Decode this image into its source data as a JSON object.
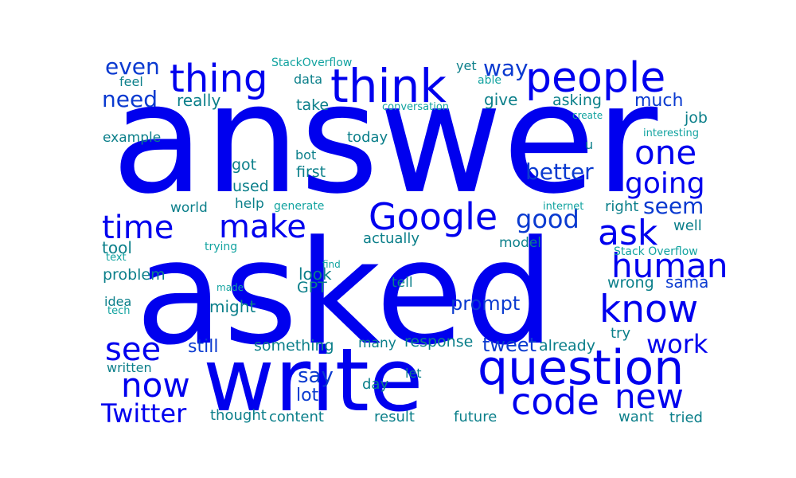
{
  "colors": {
    "background": "#ffffff",
    "blue": "#0000ee",
    "blue_mid": "#0a3ad0",
    "teal": "#0b7f8a",
    "teal_light": "#12a3a0"
  },
  "words": [
    {
      "text": "answer",
      "weight": 1.0,
      "color": "blue"
    },
    {
      "text": "asked",
      "weight": 0.98,
      "color": "blue"
    },
    {
      "text": "write",
      "weight": 0.76,
      "color": "blue"
    },
    {
      "text": "question",
      "weight": 0.45,
      "color": "blue"
    },
    {
      "text": "think",
      "weight": 0.44,
      "color": "blue"
    },
    {
      "text": "people",
      "weight": 0.4,
      "color": "blue"
    },
    {
      "text": "thing",
      "weight": 0.38,
      "color": "blue"
    },
    {
      "text": "know",
      "weight": 0.37,
      "color": "blue"
    },
    {
      "text": "Google",
      "weight": 0.36,
      "color": "blue"
    },
    {
      "text": "code",
      "weight": 0.36,
      "color": "blue"
    },
    {
      "text": "new",
      "weight": 0.34,
      "color": "blue"
    },
    {
      "text": "human",
      "weight": 0.32,
      "color": "blue"
    },
    {
      "text": "ask",
      "weight": 0.32,
      "color": "blue"
    },
    {
      "text": "now",
      "weight": 0.32,
      "color": "blue"
    },
    {
      "text": "one",
      "weight": 0.3,
      "color": "blue"
    },
    {
      "text": "make",
      "weight": 0.3,
      "color": "blue"
    },
    {
      "text": "see",
      "weight": 0.3,
      "color": "blue"
    },
    {
      "text": "time",
      "weight": 0.29,
      "color": "blue"
    },
    {
      "text": "going",
      "weight": 0.27,
      "color": "blue"
    },
    {
      "text": "Twitter",
      "weight": 0.26,
      "color": "blue"
    },
    {
      "text": "work",
      "weight": 0.25,
      "color": "blue"
    },
    {
      "text": "good",
      "weight": 0.23,
      "color": "blue_mid"
    },
    {
      "text": "better",
      "weight": 0.2,
      "color": "blue_mid"
    },
    {
      "text": "need",
      "weight": 0.2,
      "color": "blue_mid"
    },
    {
      "text": "even",
      "weight": 0.2,
      "color": "blue_mid"
    },
    {
      "text": "seem",
      "weight": 0.19,
      "color": "blue_mid"
    },
    {
      "text": "way",
      "weight": 0.19,
      "color": "blue_mid"
    },
    {
      "text": "say",
      "weight": 0.18,
      "color": "blue_mid"
    },
    {
      "text": "prompt",
      "weight": 0.17,
      "color": "blue_mid"
    },
    {
      "text": "tweet",
      "weight": 0.16,
      "color": "blue_mid"
    },
    {
      "text": "much",
      "weight": 0.15,
      "color": "blue_mid"
    },
    {
      "text": "still",
      "weight": 0.15,
      "color": "blue_mid"
    },
    {
      "text": "lot",
      "weight": 0.15,
      "color": "blue_mid"
    },
    {
      "text": "sama",
      "weight": 0.14,
      "color": "blue_mid"
    },
    {
      "text": "might",
      "weight": 0.14,
      "color": "teal"
    },
    {
      "text": "look",
      "weight": 0.14,
      "color": "teal"
    },
    {
      "text": "tool",
      "weight": 0.14,
      "color": "teal"
    },
    {
      "text": "really",
      "weight": 0.14,
      "color": "teal"
    },
    {
      "text": "give",
      "weight": 0.13,
      "color": "teal"
    },
    {
      "text": "something",
      "weight": 0.13,
      "color": "teal"
    },
    {
      "text": "response",
      "weight": 0.13,
      "color": "teal"
    },
    {
      "text": "already",
      "weight": 0.13,
      "color": "teal"
    },
    {
      "text": "take",
      "weight": 0.12,
      "color": "teal"
    },
    {
      "text": "first",
      "weight": 0.12,
      "color": "teal"
    },
    {
      "text": "problem",
      "weight": 0.12,
      "color": "teal"
    },
    {
      "text": "wrong",
      "weight": 0.12,
      "color": "teal"
    },
    {
      "text": "GPT",
      "weight": 0.12,
      "color": "teal"
    },
    {
      "text": "job",
      "weight": 0.12,
      "color": "teal"
    },
    {
      "text": "asking",
      "weight": 0.12,
      "color": "teal"
    },
    {
      "text": "got",
      "weight": 0.12,
      "color": "teal"
    },
    {
      "text": "used",
      "weight": 0.12,
      "color": "teal"
    },
    {
      "text": "today",
      "weight": 0.11,
      "color": "teal"
    },
    {
      "text": "actually",
      "weight": 0.11,
      "color": "teal"
    },
    {
      "text": "right",
      "weight": 0.11,
      "color": "teal"
    },
    {
      "text": "well",
      "weight": 0.11,
      "color": "teal"
    },
    {
      "text": "try",
      "weight": 0.11,
      "color": "teal"
    },
    {
      "text": "day",
      "weight": 0.11,
      "color": "teal"
    },
    {
      "text": "result",
      "weight": 0.11,
      "color": "teal"
    },
    {
      "text": "future",
      "weight": 0.11,
      "color": "teal"
    },
    {
      "text": "want",
      "weight": 0.11,
      "color": "teal"
    },
    {
      "text": "tried",
      "weight": 0.11,
      "color": "teal"
    },
    {
      "text": "content",
      "weight": 0.11,
      "color": "teal"
    },
    {
      "text": "thought",
      "weight": 0.11,
      "color": "teal"
    },
    {
      "text": "many",
      "weight": 0.1,
      "color": "teal"
    },
    {
      "text": "tell",
      "weight": 0.1,
      "color": "teal"
    },
    {
      "text": "model",
      "weight": 0.1,
      "color": "teal"
    },
    {
      "text": "world",
      "weight": 0.1,
      "color": "teal"
    },
    {
      "text": "help",
      "weight": 0.1,
      "color": "teal"
    },
    {
      "text": "example",
      "weight": 0.1,
      "color": "teal"
    },
    {
      "text": "feel",
      "weight": 0.1,
      "color": "teal"
    },
    {
      "text": "data",
      "weight": 0.1,
      "color": "teal"
    },
    {
      "text": "yet",
      "weight": 0.1,
      "color": "teal"
    },
    {
      "text": "bot",
      "weight": 0.1,
      "color": "teal"
    },
    {
      "text": "idea",
      "weight": 0.1,
      "color": "teal"
    },
    {
      "text": "let",
      "weight": 0.1,
      "color": "teal"
    },
    {
      "text": "written",
      "weight": 0.09,
      "color": "teal"
    },
    {
      "text": "u",
      "weight": 0.09,
      "color": "teal"
    },
    {
      "text": "StackOverflow",
      "weight": 0.08,
      "color": "teal_light"
    },
    {
      "text": "Stack Overflow",
      "weight": 0.08,
      "color": "teal_light"
    },
    {
      "text": "able",
      "weight": 0.08,
      "color": "teal_light"
    },
    {
      "text": "trying",
      "weight": 0.08,
      "color": "teal_light"
    },
    {
      "text": "generate",
      "weight": 0.08,
      "color": "teal_light"
    },
    {
      "text": "internet",
      "weight": 0.08,
      "color": "teal_light"
    },
    {
      "text": "text",
      "weight": 0.07,
      "color": "teal_light"
    },
    {
      "text": "tech",
      "weight": 0.07,
      "color": "teal_light"
    },
    {
      "text": "conversation",
      "weight": 0.07,
      "color": "teal_light"
    },
    {
      "text": "interesting",
      "weight": 0.07,
      "color": "teal_light"
    },
    {
      "text": "create",
      "weight": 0.06,
      "color": "teal_light"
    },
    {
      "text": "find",
      "weight": 0.06,
      "color": "teal_light"
    },
    {
      "text": "made",
      "weight": 0.06,
      "color": "teal_light"
    }
  ]
}
